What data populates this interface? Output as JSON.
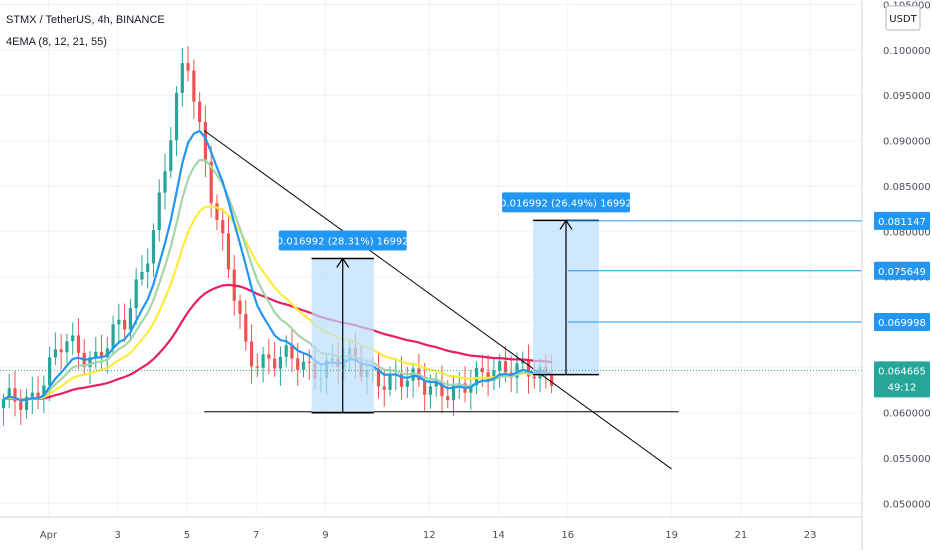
{
  "header": {
    "symbol_line": "STMX / TetherUS, 4h, BINANCE",
    "indicator_line": "4EMA (8, 12, 21, 55)"
  },
  "colors": {
    "up": "#26a69a",
    "down": "#ef5350",
    "ema8": "#2196f3",
    "ema12": "#a5d6a7",
    "ema21": "#ffeb3b",
    "ema55": "#e91e63",
    "measure_fill": "#bbdefb",
    "tag_blue": "#2196f3",
    "trendline": "#000000"
  },
  "chart_data": {
    "type": "candlestick",
    "title": "STMX / TetherUS, 4h, BINANCE",
    "indicator": "4EMA (8, 12, 21, 55)",
    "currency_label": "USDT",
    "x_ticks": [
      {
        "label": "Apr",
        "day": 1
      },
      {
        "label": "3",
        "day": 3
      },
      {
        "label": "5",
        "day": 5
      },
      {
        "label": "7",
        "day": 7
      },
      {
        "label": "9",
        "day": 9
      },
      {
        "label": "12",
        "day": 12
      },
      {
        "label": "14",
        "day": 14
      },
      {
        "label": "16",
        "day": 16
      },
      {
        "label": "19",
        "day": 19
      },
      {
        "label": "21",
        "day": 21
      },
      {
        "label": "23",
        "day": 23
      }
    ],
    "y_ticks": [
      "0.105000",
      "0.100000",
      "0.095000",
      "0.090000",
      "0.085000",
      "0.080000",
      "0.075000",
      "0.070000",
      "0.065000",
      "0.060000",
      "0.055000",
      "0.050000"
    ],
    "ylim": [
      0.0485,
      0.1055
    ],
    "xlim": [
      -0.4,
      24.5
    ],
    "candles_day_range": [
      -0.3,
      15.6
    ],
    "key_prices": [
      0.0608,
      0.0621,
      0.0676,
      0.0662,
      0.0697,
      0.0813,
      0.0996,
      0.0815,
      0.0662,
      0.0661,
      0.0648,
      0.0658,
      0.0646,
      0.0632,
      0.0634,
      0.0618,
      0.0655,
      0.0641,
      0.0647
    ],
    "ema_values": {
      "ema8_end": 0.0647,
      "ema12_end": 0.0648,
      "ema21_end": 0.0651,
      "ema55_end": 0.0685
    },
    "trendlines": [
      {
        "name": "descending-resistance",
        "start": [
          5.5,
          0.0911
        ],
        "end": [
          19.0,
          0.0538
        ]
      },
      {
        "name": "support",
        "start": [
          5.5,
          0.0601
        ],
        "end": [
          19.2,
          0.0601
        ]
      }
    ],
    "measurements": [
      {
        "label": "0.016992 (28.31%) 16992",
        "from_price": 0.06,
        "to_price": 0.077,
        "day_start": 8.6,
        "day_end": 10.4
      },
      {
        "label": "0.016992 (26.49%) 16992",
        "from_price": 0.0642,
        "to_price": 0.0812,
        "day_start": 15.0,
        "day_end": 16.9
      }
    ],
    "price_labels": [
      {
        "value": "0.081147",
        "price": 0.081147,
        "style": "blue"
      },
      {
        "value": "0.075649",
        "price": 0.075649,
        "style": "blue"
      },
      {
        "value": "0.069998",
        "price": 0.069998,
        "style": "blue"
      },
      {
        "value": "0.064665",
        "price": 0.064665,
        "style": "green"
      }
    ],
    "countdown": "49:12",
    "last_price": 0.064665
  }
}
